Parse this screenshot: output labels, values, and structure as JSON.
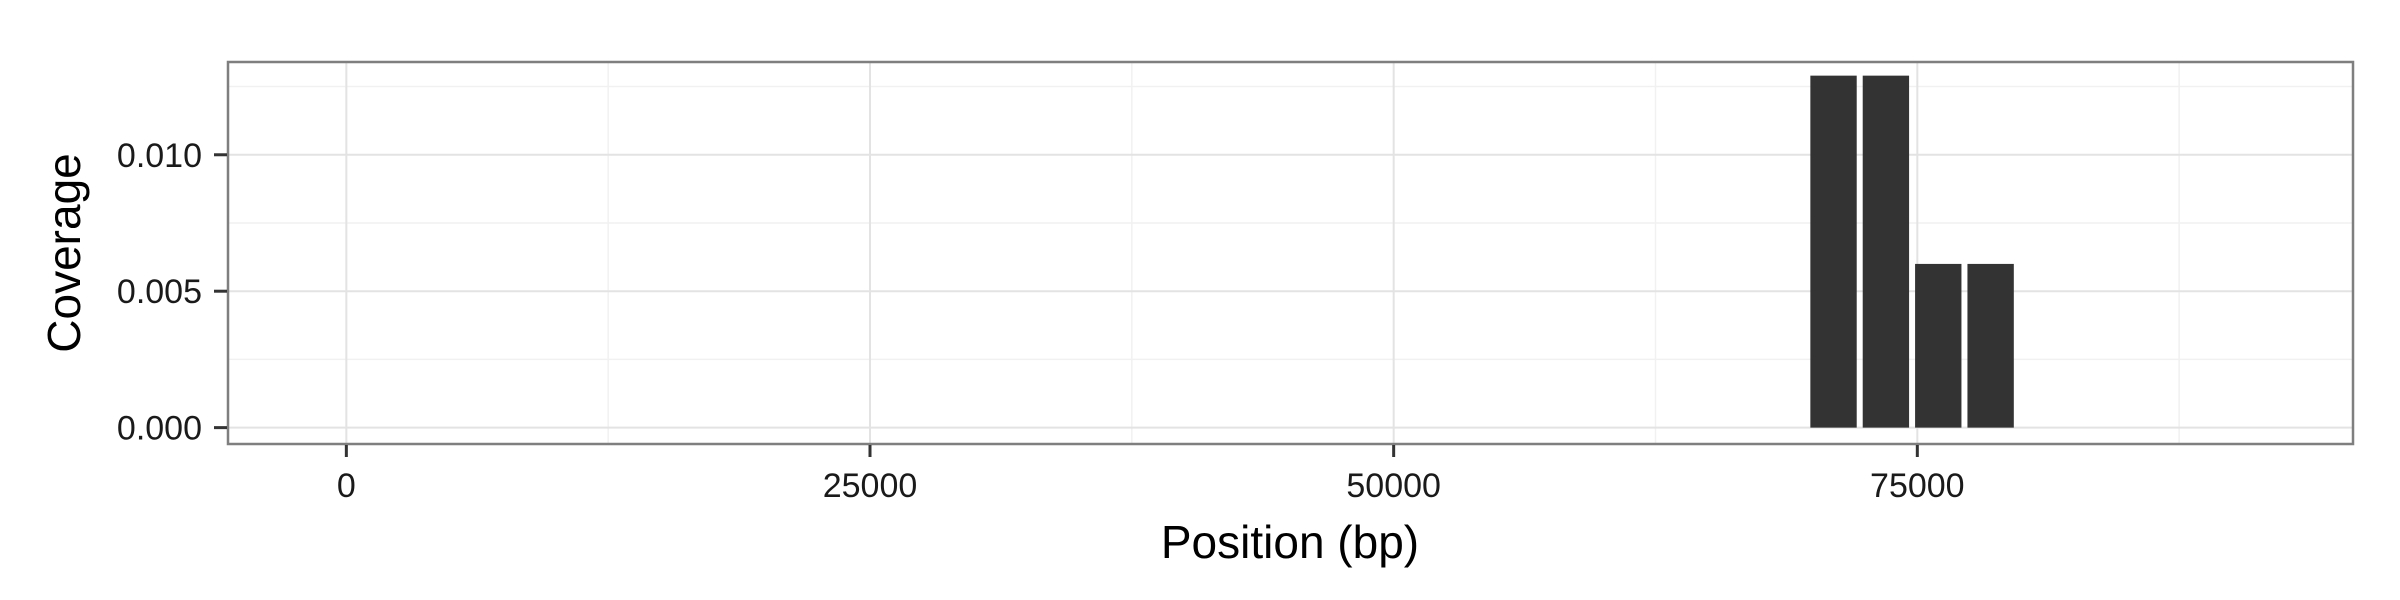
{
  "chart_data": {
    "type": "bar",
    "xlabel": "Position (bp)",
    "ylabel": "Coverage",
    "xlim": [
      -5650,
      95800
    ],
    "ylim": [
      -0.0006,
      0.0134
    ],
    "x_ticks": [
      0,
      25000,
      50000,
      75000
    ],
    "x_tick_labels": [
      "0",
      "25000",
      "50000",
      "75000"
    ],
    "y_ticks": [
      0,
      0.005,
      0.01
    ],
    "y_tick_labels": [
      "0.000",
      "0.005",
      "0.010"
    ],
    "grid": true,
    "bar_width": 2500,
    "bars": [
      {
        "x": 71000,
        "value": 0.0129
      },
      {
        "x": 73500,
        "value": 0.0129
      },
      {
        "x": 76000,
        "value": 0.006
      },
      {
        "x": 78500,
        "value": 0.006
      }
    ],
    "bar_color": "#333333"
  }
}
